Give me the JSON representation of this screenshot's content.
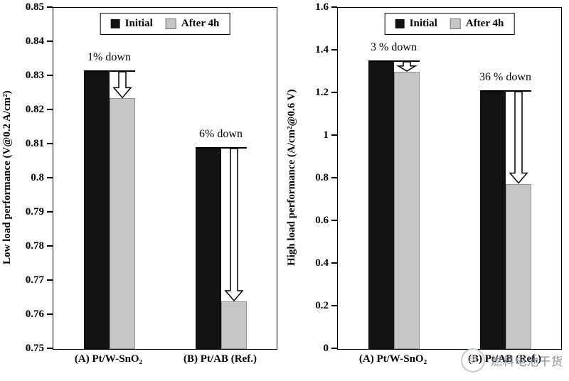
{
  "figure": {
    "background": "#ffffff"
  },
  "watermark": {
    "icon": "snowflake-logo",
    "text": "燃料电池干货",
    "color": "#8e979e"
  },
  "chart_data": [
    {
      "id": "low-load-performance",
      "type": "bar",
      "title": "",
      "ylabel": "Low load performance (V@0.2 A/cm²)",
      "xlabel": "",
      "ylim": [
        0.75,
        0.85
      ],
      "yticks": [
        "0.75",
        "0.76",
        "0.77",
        "0.78",
        "0.79",
        "0.8",
        "0.81",
        "0.82",
        "0.83",
        "0.84",
        "0.85"
      ],
      "categories": [
        "(A) Pt/W-SnO₂",
        "(B) Pt/AB (Ref.)"
      ],
      "series": [
        {
          "name": "Initial",
          "color": "#121212",
          "values": [
            0.8315,
            0.809
          ]
        },
        {
          "name": "After 4h",
          "color": "#c6c6c6",
          "values": [
            0.8235,
            0.764
          ]
        }
      ],
      "annotations": [
        {
          "text": "1% down",
          "category": 0
        },
        {
          "text": "6% down",
          "category": 1
        }
      ],
      "legend_position": "top-center",
      "grid": false
    },
    {
      "id": "high-load-performance",
      "type": "bar",
      "title": "",
      "ylabel": "High load performance (A/cm²@0.6 V)",
      "xlabel": "",
      "ylim": [
        0,
        1.6
      ],
      "yticks": [
        "0",
        "0.2",
        "0.4",
        "0.6",
        "0.8",
        "1",
        "1.2",
        "1.4",
        "1.6"
      ],
      "categories": [
        "(A) Pt/W-SnO₂",
        "(B) Pt/AB (Ref.)"
      ],
      "series": [
        {
          "name": "Initial",
          "color": "#121212",
          "values": [
            1.35,
            1.21
          ]
        },
        {
          "name": "After 4h",
          "color": "#c6c6c6",
          "values": [
            1.3,
            0.775
          ]
        }
      ],
      "annotations": [
        {
          "text": "3 % down",
          "category": 0
        },
        {
          "text": "36 % down",
          "category": 1
        }
      ],
      "legend_position": "top-center",
      "grid": false
    }
  ]
}
